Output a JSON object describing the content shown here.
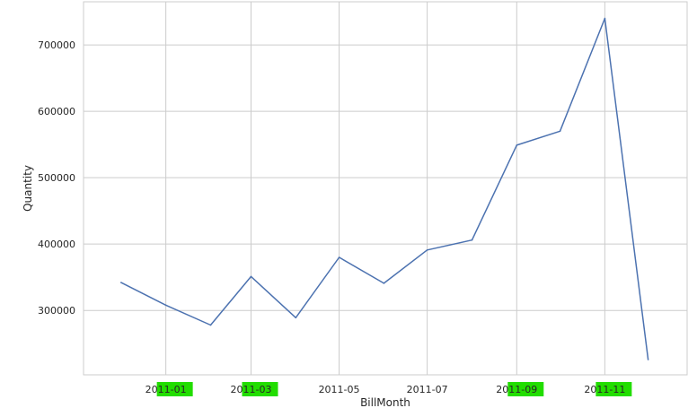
{
  "chart_data": {
    "type": "line",
    "xlabel": "BillMonth",
    "ylabel": "Quantity",
    "x": [
      "2010-12",
      "2011-01",
      "2011-02",
      "2011-03",
      "2011-04",
      "2011-05",
      "2011-06",
      "2011-07",
      "2011-08",
      "2011-09",
      "2011-10",
      "2011-11",
      "2011-12"
    ],
    "series": [
      {
        "values": [
          342000,
          308000,
          278000,
          351000,
          289000,
          380000,
          341000,
          391000,
          406000,
          549000,
          570000,
          740000,
          226000
        ]
      }
    ],
    "x_ticks": [
      "2011-01",
      "2011-03",
      "2011-05",
      "2011-07",
      "2011-09",
      "2011-11"
    ],
    "y_ticks": [
      300000,
      400000,
      500000,
      600000,
      700000
    ],
    "ylim": [
      203000,
      765000
    ],
    "xlim": [
      "2010-11-05",
      "2011-12-28"
    ],
    "grid": true,
    "line_color": "#4c72b0",
    "highlight_color": "#22dd00"
  }
}
